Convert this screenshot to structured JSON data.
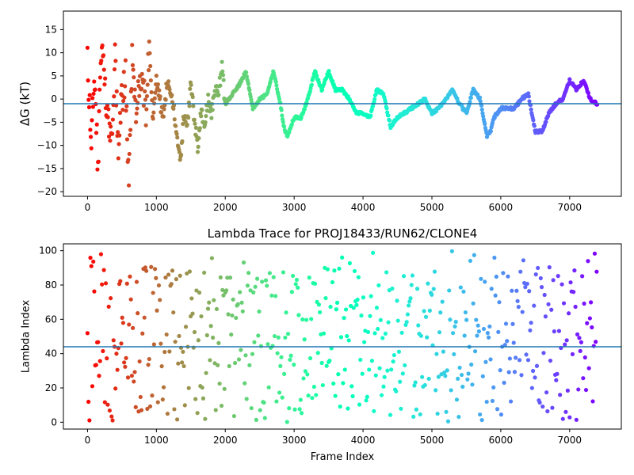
{
  "chart_data": [
    {
      "type": "scatter",
      "title": "",
      "xlabel": "",
      "ylabel": "ΔG (kT)",
      "xlim": [
        -350,
        7750
      ],
      "ylim": [
        -21,
        19
      ],
      "xticks": [
        0,
        1000,
        2000,
        3000,
        4000,
        5000,
        6000,
        7000
      ],
      "yticks": [
        -20,
        -15,
        -10,
        -5,
        0,
        5,
        10,
        15
      ],
      "hline": -1.0,
      "colormap": "rainbow (reversed along frame index: red at start, violet at end)",
      "series": [
        {
          "x": [
            0,
            50,
            100,
            150,
            200,
            250,
            300,
            350,
            400,
            450,
            500,
            550,
            600,
            650,
            700,
            750,
            800,
            850,
            900,
            950,
            1000,
            1050,
            1100,
            1150,
            1200,
            1250,
            1300,
            1350,
            1400,
            1450,
            1500,
            1550,
            1600,
            1650,
            1700,
            1750,
            1800,
            1850,
            1900,
            1950,
            2000,
            2100,
            2200,
            2300,
            2400,
            2500,
            2600,
            2700,
            2800,
            2850,
            2900,
            3000,
            3100,
            3200,
            3300,
            3400,
            3500,
            3600,
            3700,
            3800,
            3900,
            4000,
            4100,
            4200,
            4300,
            4400,
            4500,
            4600,
            4700,
            4800,
            4900,
            5000,
            5100,
            5200,
            5300,
            5400,
            5500,
            5600,
            5700,
            5800,
            5850,
            5900,
            6000,
            6100,
            6200,
            6300,
            6400,
            6500,
            6600,
            6700,
            6800,
            6900,
            7000,
            7100,
            7200,
            7300,
            7400
          ],
          "y": [
            10,
            -10,
            5,
            -15,
            12,
            2,
            -3,
            -8,
            8,
            -12,
            0,
            6,
            -18,
            10,
            -5,
            2,
            4,
            -2,
            12,
            -6,
            4,
            0,
            -5,
            3,
            2,
            -2,
            -8,
            -13,
            -3,
            -6,
            3,
            -4,
            -11,
            -2,
            -6,
            0,
            -3,
            2,
            1,
            7,
            -1,
            1,
            3,
            6,
            -2,
            0,
            1,
            6,
            -1,
            -6,
            -8,
            -4,
            -4,
            0,
            6,
            2,
            6,
            2,
            2,
            0,
            -3,
            -3,
            -4,
            2,
            1,
            -6,
            -4,
            -3,
            -2,
            -1,
            0,
            -3,
            -2,
            0,
            2,
            -1,
            -3,
            2,
            0,
            -8,
            -7,
            -4,
            -2,
            -2,
            -2,
            0,
            1,
            -7,
            -7,
            -3,
            -1,
            0,
            4,
            2,
            4,
            0,
            -1
          ]
        }
      ]
    },
    {
      "type": "scatter",
      "title": "Lambda Trace for PROJ18433/RUN62/CLONE4",
      "xlabel": "Frame Index",
      "ylabel": "Lambda Index",
      "xlim": [
        -350,
        7750
      ],
      "ylim": [
        -4,
        104
      ],
      "xticks": [
        0,
        1000,
        2000,
        3000,
        4000,
        5000,
        6000,
        7000
      ],
      "yticks": [
        0,
        20,
        40,
        60,
        80,
        100
      ],
      "hline": 44,
      "colormap": "rainbow (reversed along frame index: red at start, violet at end)",
      "series": [
        {
          "x": [
            0,
            200,
            400,
            600,
            800,
            1000,
            1200,
            1400,
            1600,
            1800,
            2000,
            2200,
            2400,
            2600,
            2800,
            3000,
            3200,
            3400,
            3600,
            3800,
            4000,
            4200,
            4400,
            4600,
            4800,
            5000,
            5200,
            5400,
            5600,
            5800,
            6000,
            6200,
            6400,
            6600,
            6800,
            7000,
            7200,
            7400
          ],
          "y": [
            50,
            50,
            50,
            50,
            48,
            50,
            48,
            45,
            45,
            42,
            45,
            45,
            42,
            45,
            45,
            45,
            42,
            45,
            45,
            45,
            45,
            42,
            45,
            40,
            42,
            45,
            42,
            42,
            42,
            45,
            42,
            45,
            42,
            45,
            40,
            45,
            45,
            60
          ]
        }
      ]
    }
  ]
}
